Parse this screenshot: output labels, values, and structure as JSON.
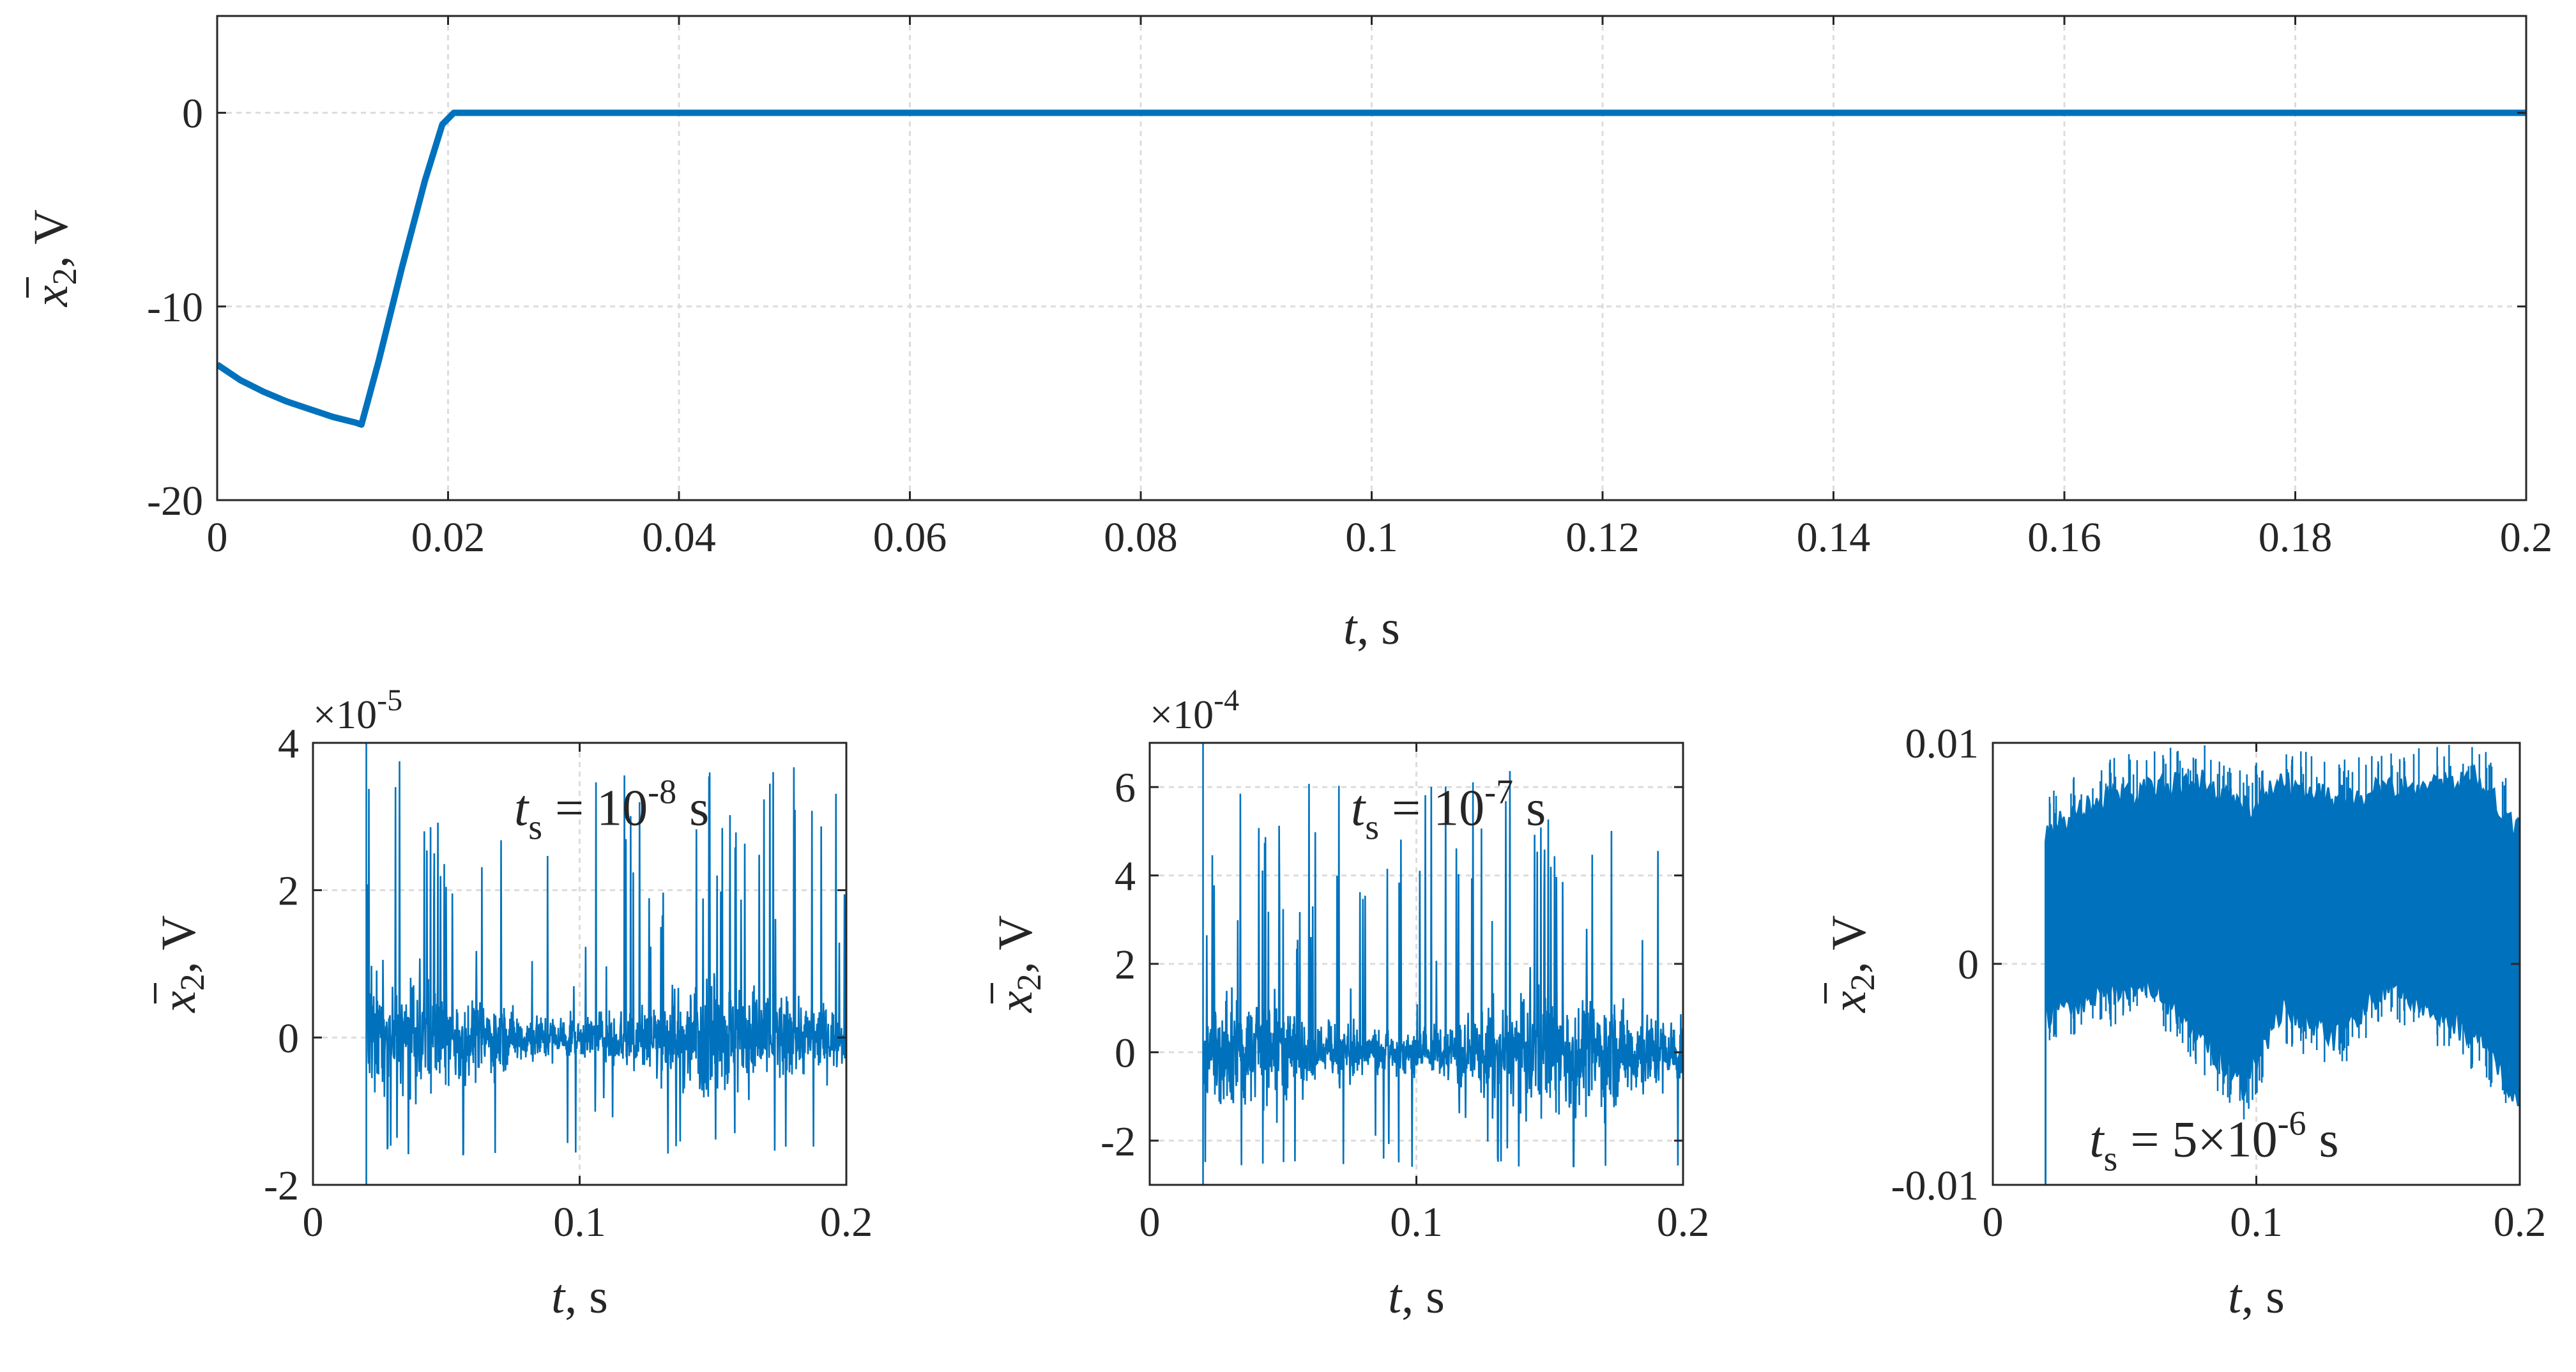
{
  "chart_data": [
    {
      "type": "line",
      "panel": "top",
      "xlabel": {
        "var": "t",
        "unit": ", s"
      },
      "ylabel": {
        "var": "x",
        "sub": "2",
        "unit": ", V"
      },
      "xlim": [
        0,
        0.2
      ],
      "ylim": [
        -20,
        5
      ],
      "xticks": [
        0,
        0.02,
        0.04,
        0.06,
        0.08,
        0.1,
        0.12,
        0.14,
        0.16,
        0.18,
        0.2
      ],
      "xtick_labels": [
        "0",
        "0.02",
        "0.04",
        "0.06",
        "0.08",
        "0.1",
        "0.12",
        "0.14",
        "0.16",
        "0.18",
        "0.2"
      ],
      "yticks": [
        -20,
        -10,
        0
      ],
      "ytick_labels": [
        "-20",
        "-10",
        "0"
      ],
      "grid": true,
      "color": "#0072BD",
      "series": [
        {
          "x": [
            0,
            0.002,
            0.004,
            0.006,
            0.008,
            0.01,
            0.012,
            0.0125,
            0.014,
            0.016,
            0.018,
            0.0195,
            0.0205,
            0.05,
            0.1,
            0.15,
            0.2
          ],
          "values": [
            -13.0,
            -13.8,
            -14.4,
            -14.9,
            -15.3,
            -15.7,
            -16.0,
            -16.1,
            -12.8,
            -8.0,
            -3.5,
            -0.6,
            0,
            0,
            0,
            0,
            0
          ]
        }
      ]
    },
    {
      "type": "line",
      "panel": "bottom-left",
      "xlabel": {
        "var": "t",
        "unit": ", s"
      },
      "ylabel": {
        "var": "x",
        "sub": "2",
        "unit": ", V"
      },
      "xlim": [
        0,
        0.2
      ],
      "ylim": [
        -2,
        4
      ],
      "xticks": [
        0,
        0.1,
        0.2
      ],
      "xtick_labels": [
        "0",
        "0.1",
        "0.2"
      ],
      "yticks": [
        -2,
        0,
        2,
        4
      ],
      "ytick_labels": [
        "-2",
        "0",
        "2",
        "4"
      ],
      "exponent_label": {
        "base": "×10",
        "exp": "-5"
      },
      "annotation": {
        "var": "t",
        "sub": "s",
        "text": " = 10",
        "sup": "-8",
        "unit": " s"
      },
      "grid": true,
      "color": "#0072BD",
      "signal": {
        "start": 0.02,
        "envelope_x": [
          0.02,
          0.05,
          0.08,
          0.1,
          0.12,
          0.15,
          0.17,
          0.2
        ],
        "envelope_amp": [
          1.5,
          1.2,
          0.6,
          0.5,
          0.8,
          1.5,
          1.2,
          0.6
        ],
        "spike_max": 3.5,
        "spike_min": -1.6
      }
    },
    {
      "type": "line",
      "panel": "bottom-middle",
      "xlabel": {
        "var": "t",
        "unit": ", s"
      },
      "ylabel": {
        "var": "x",
        "sub": "2",
        "unit": ", V"
      },
      "xlim": [
        0,
        0.2
      ],
      "ylim": [
        -3,
        7
      ],
      "xticks": [
        0,
        0.1,
        0.2
      ],
      "xtick_labels": [
        "0",
        "0.1",
        "0.2"
      ],
      "yticks": [
        -2,
        0,
        2,
        4,
        6
      ],
      "ytick_labels": [
        "-2",
        "0",
        "2",
        "4",
        "6"
      ],
      "exponent_label": {
        "base": "×10",
        "exp": "-4"
      },
      "annotation": {
        "var": "t",
        "sub": "s",
        "text": " = 10",
        "sup": "-7",
        "unit": " s"
      },
      "grid": true,
      "color": "#0072BD",
      "signal": {
        "start": 0.02,
        "envelope_x": [
          0.02,
          0.05,
          0.08,
          0.1,
          0.12,
          0.15,
          0.17,
          0.2
        ],
        "envelope_amp": [
          2.2,
          1.8,
          1.0,
          0.8,
          1.5,
          2.6,
          2.2,
          1.2
        ],
        "spike_max": 6.0,
        "spike_min": -2.6
      }
    },
    {
      "type": "line",
      "panel": "bottom-right",
      "xlabel": {
        "var": "t",
        "unit": ", s"
      },
      "ylabel": {
        "var": "x",
        "sub": "2",
        "unit": ", V"
      },
      "xlim": [
        0,
        0.2
      ],
      "ylim": [
        -0.01,
        0.01
      ],
      "xticks": [
        0,
        0.1,
        0.2
      ],
      "xtick_labels": [
        "0",
        "0.1",
        "0.2"
      ],
      "yticks": [
        -0.01,
        0,
        0.01
      ],
      "ytick_labels": [
        "-0.01",
        "0",
        "0.01"
      ],
      "annotation": {
        "var": "t",
        "sub": "s",
        "text": " = 5×10",
        "sup": "-6",
        "unit": " s"
      },
      "grid": true,
      "color": "#0072BD",
      "signal": {
        "start": 0.02,
        "upper_x": [
          0.02,
          0.04,
          0.06,
          0.08,
          0.095,
          0.11,
          0.13,
          0.15,
          0.17,
          0.185,
          0.2
        ],
        "upper": [
          0.0065,
          0.008,
          0.0085,
          0.0088,
          0.0075,
          0.0088,
          0.008,
          0.0085,
          0.0088,
          0.009,
          0.0065
        ],
        "lower_x": [
          0.02,
          0.04,
          0.06,
          0.08,
          0.095,
          0.11,
          0.13,
          0.15,
          0.17,
          0.185,
          0.2
        ],
        "lower": [
          -0.003,
          -0.002,
          -0.0015,
          -0.004,
          -0.0062,
          -0.0025,
          -0.004,
          -0.0015,
          -0.003,
          -0.004,
          -0.0068
        ]
      }
    }
  ]
}
